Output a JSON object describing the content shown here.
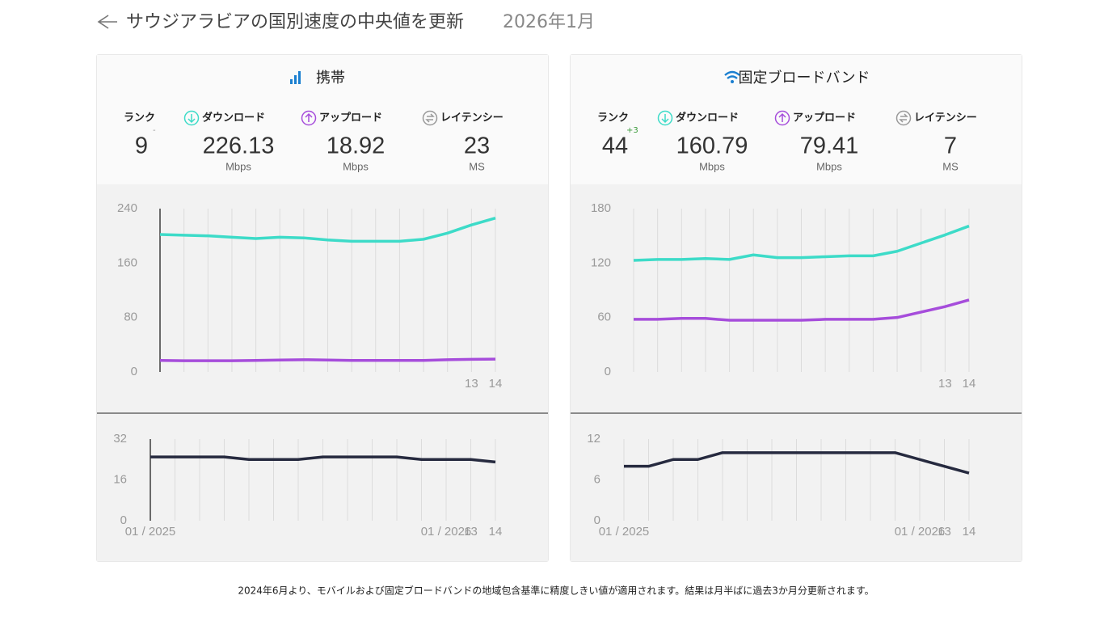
{
  "header": {
    "title": "サウジアラビアの国別速度の中央値を更新",
    "date": "2026年1月"
  },
  "panels": [
    {
      "title": "携帯",
      "axis_line": true,
      "metrics": [
        {
          "label": "ランク",
          "value": "9",
          "change": "-"
        },
        {
          "label": "ダウンロード",
          "value": "226.13",
          "unit": "Mbps"
        },
        {
          "label": "アップロード",
          "value": "18.92",
          "unit": "Mbps"
        },
        {
          "label": "レイテンシー",
          "value": "23",
          "unit": "MS"
        }
      ],
      "charts": [
        {
          "type": "line",
          "categories": [
            null,
            null,
            null,
            null,
            null,
            null,
            null,
            null,
            null,
            null,
            null,
            null,
            null,
            "13",
            "14"
          ],
          "ylim": [
            0,
            240
          ],
          "yticks": [
            0,
            80,
            160,
            240
          ],
          "series": [
            {
              "color": "#3ddbc8",
              "values": [
                202,
                201,
                200,
                198,
                196,
                198,
                197,
                194,
                192,
                192,
                192,
                195,
                204,
                216,
                226.13
              ]
            },
            {
              "color": "#a64ddb",
              "values": [
                17,
                16.5,
                16.5,
                16.5,
                17,
                17.5,
                18,
                17.5,
                17,
                17,
                17,
                17,
                18,
                18.5,
                18.92
              ]
            }
          ]
        },
        {
          "type": "line",
          "categories": [
            "01 / 2025",
            null,
            null,
            null,
            null,
            null,
            null,
            null,
            null,
            null,
            null,
            null,
            "01 / 2026",
            "13",
            "14"
          ],
          "ylim": [
            0,
            32
          ],
          "yticks": [
            0,
            16,
            32
          ],
          "series": [
            {
              "color": "#262a3f",
              "values": [
                25,
                25,
                25,
                25,
                24,
                24,
                24,
                25,
                25,
                25,
                25,
                24,
                24,
                24,
                23
              ]
            }
          ]
        }
      ]
    },
    {
      "title": "固定ブロードバンド",
      "axis_line": false,
      "metrics": [
        {
          "label": "ランク",
          "value": "44",
          "change": "+3"
        },
        {
          "label": "ダウンロード",
          "value": "160.79",
          "unit": "Mbps"
        },
        {
          "label": "アップロード",
          "value": "79.41",
          "unit": "Mbps"
        },
        {
          "label": "レイテンシー",
          "value": "7",
          "unit": "MS"
        }
      ],
      "charts": [
        {
          "type": "line",
          "categories": [
            null,
            null,
            null,
            null,
            null,
            null,
            null,
            null,
            null,
            null,
            null,
            null,
            null,
            "13",
            "14"
          ],
          "ylim": [
            0,
            180
          ],
          "yticks": [
            0,
            60,
            120,
            180
          ],
          "series": [
            {
              "color": "#3ddbc8",
              "values": [
                123,
                124,
                124,
                125,
                124,
                129,
                126,
                126,
                127,
                128,
                128,
                133,
                142,
                151,
                160.79
              ]
            },
            {
              "color": "#a64ddb",
              "values": [
                58,
                58,
                59,
                59,
                57,
                57,
                57,
                57,
                58,
                58,
                58,
                60,
                66,
                72,
                79.41
              ]
            }
          ]
        },
        {
          "type": "line",
          "categories": [
            "01 / 2025",
            null,
            null,
            null,
            null,
            null,
            null,
            null,
            null,
            null,
            null,
            null,
            "01 / 2026",
            "13",
            "14"
          ],
          "ylim": [
            0,
            12
          ],
          "yticks": [
            0,
            6,
            12
          ],
          "series": [
            {
              "color": "#262a3f",
              "values": [
                8,
                8,
                9,
                9,
                10,
                10,
                10,
                10,
                10,
                10,
                10,
                10,
                9,
                8,
                7
              ]
            }
          ]
        }
      ]
    }
  ],
  "footer": "2024年6月より、モバイルおよび固定ブロードバンドの地域包含基準に精度しきい値が適用されます。結果は月半ばに過去3か月分更新されます。"
}
